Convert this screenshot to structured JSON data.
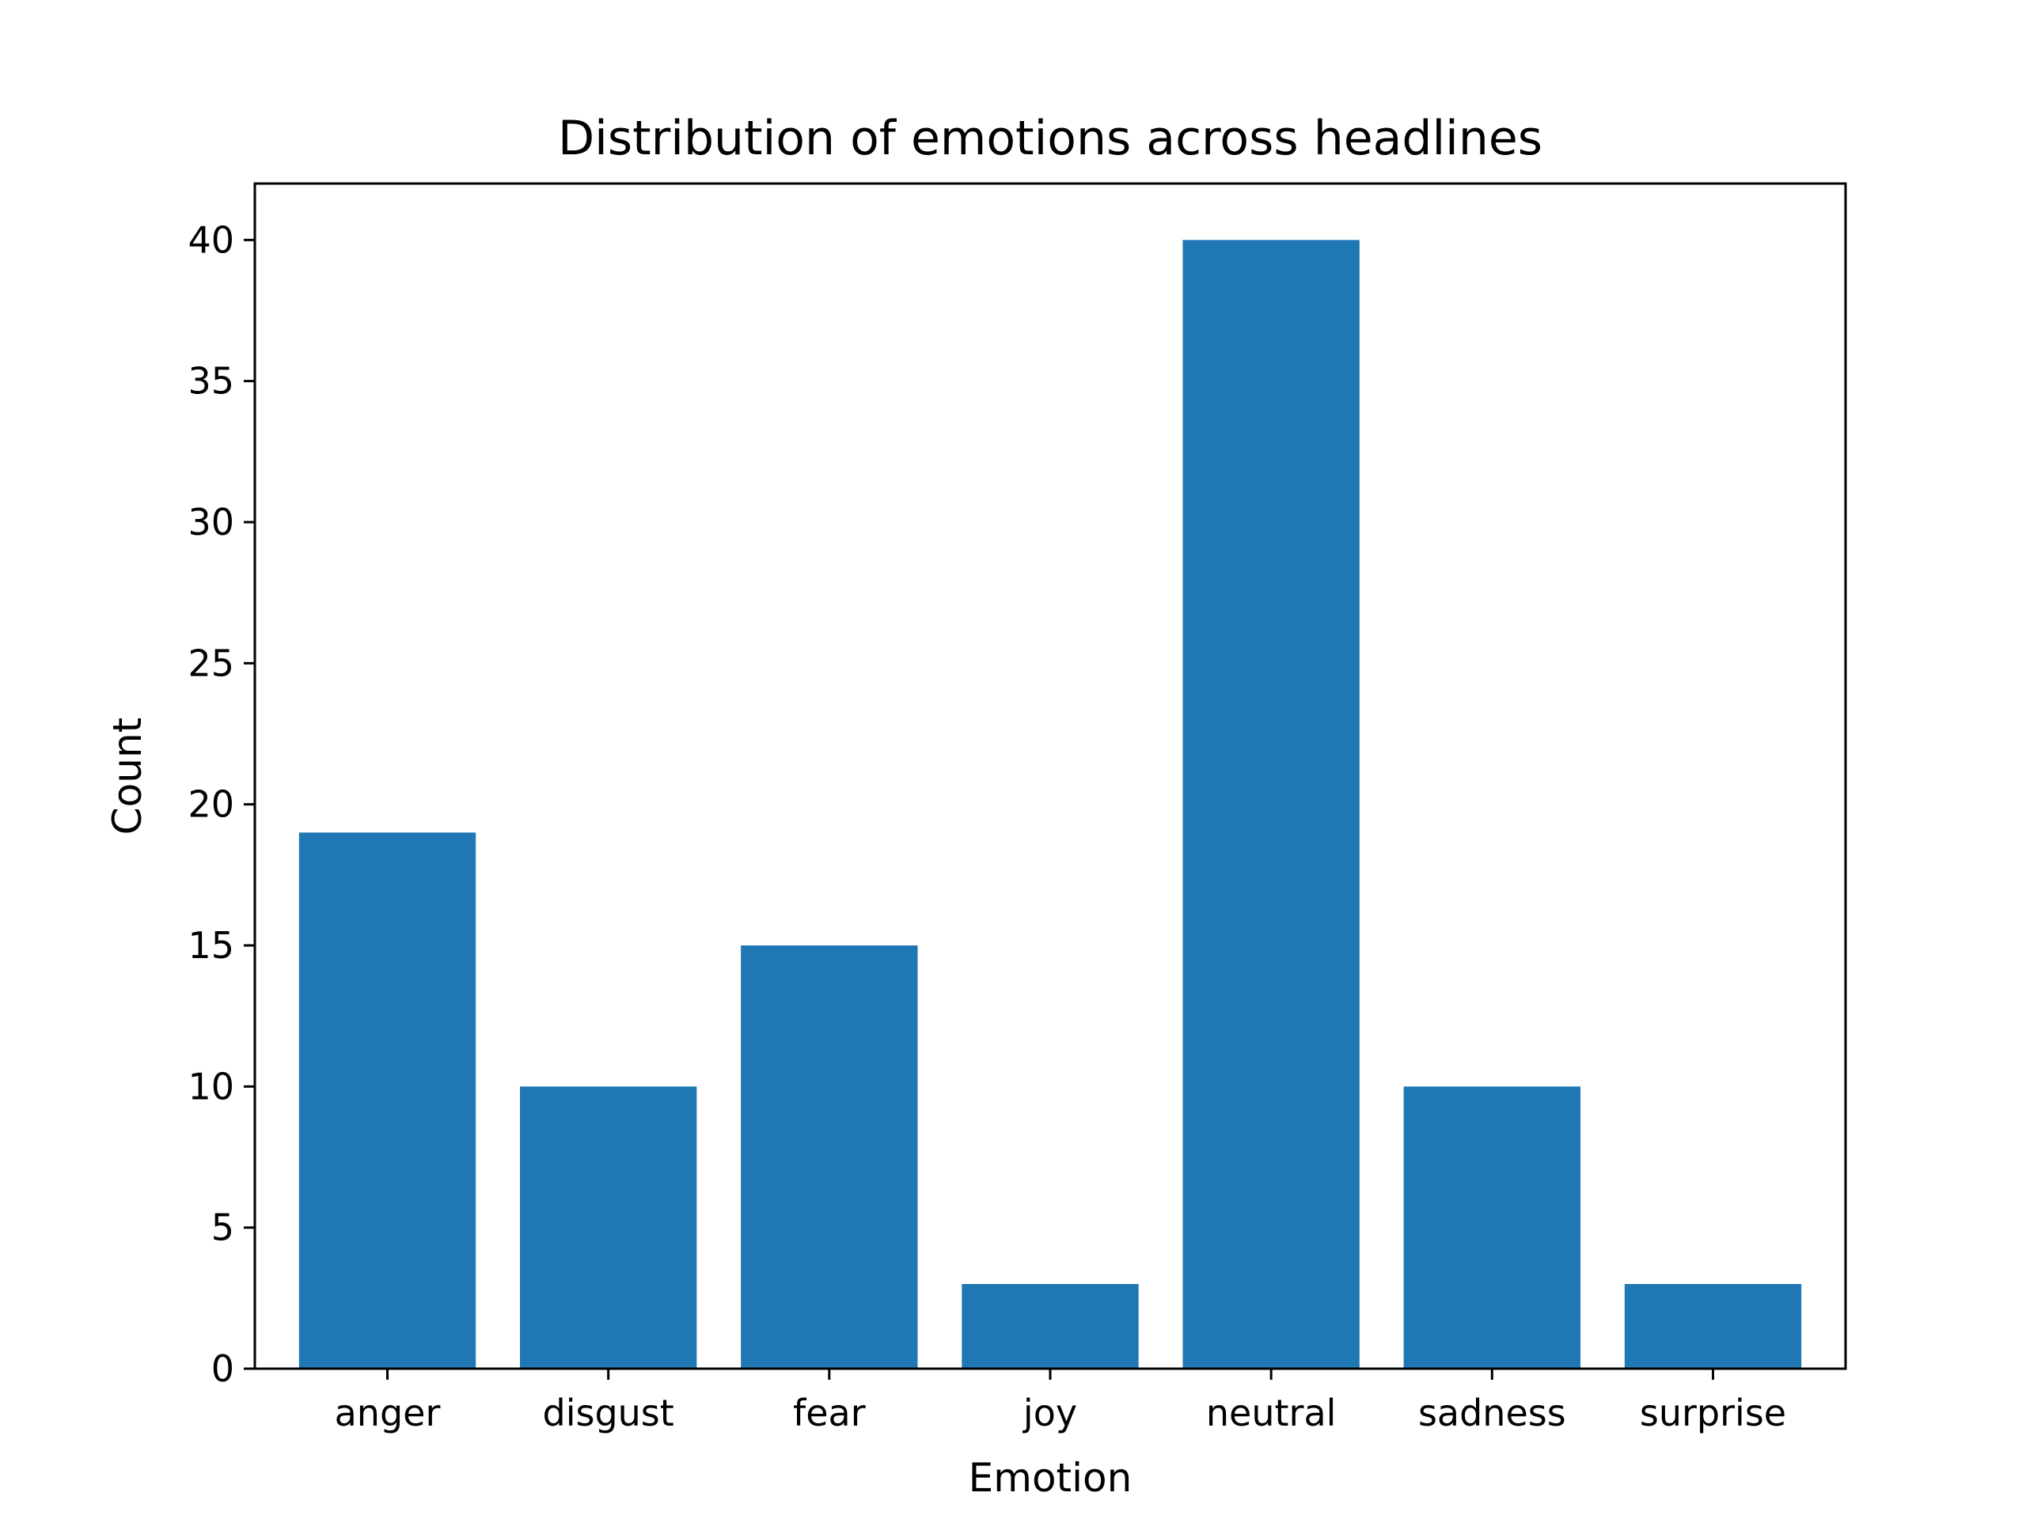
{
  "chart_data": {
    "type": "bar",
    "title": "Distribution of emotions across headlines",
    "xlabel": "Emotion",
    "ylabel": "Count",
    "categories": [
      "anger",
      "disgust",
      "fear",
      "joy",
      "neutral",
      "sadness",
      "surprise"
    ],
    "values": [
      19,
      10,
      15,
      3,
      40,
      10,
      3
    ],
    "ylim": [
      0,
      42
    ],
    "yticks": [
      0,
      5,
      10,
      15,
      20,
      25,
      30,
      35,
      40
    ],
    "grid": false,
    "legend": "none",
    "bar_color": "#1f77b4"
  }
}
